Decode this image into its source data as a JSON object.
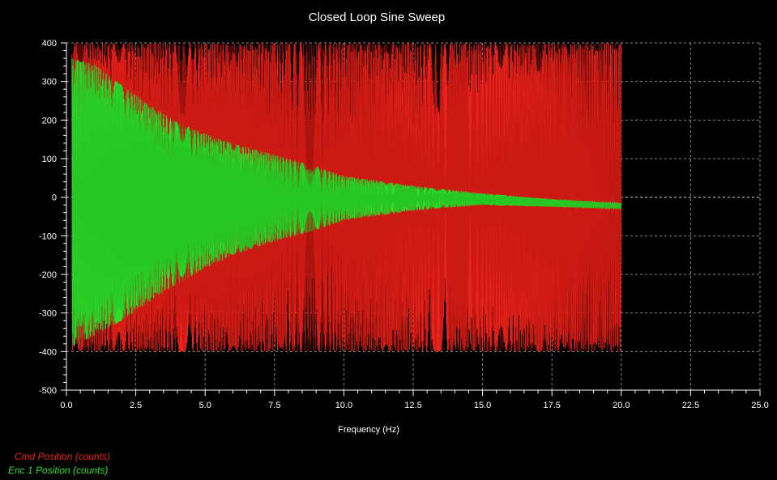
{
  "chart_data": {
    "type": "line",
    "title": "Closed Loop Sine Sweep",
    "xlabel": "Frequency (Hz)",
    "ylabel": "",
    "xlim": [
      0,
      25
    ],
    "ylim": [
      -500,
      400
    ],
    "x_ticks": [
      "0.0",
      "2.5",
      "5.0",
      "7.5",
      "10.0",
      "12.5",
      "15.0",
      "17.5",
      "20.0",
      "22.5",
      "25.0"
    ],
    "y_ticks": [
      "400",
      "300",
      "200",
      "100",
      "0",
      "-100",
      "-200",
      "-300",
      "-400",
      "-500"
    ],
    "grid": true,
    "legend_position": "bottom-left",
    "sweep_range_hz": [
      0.2,
      20.0
    ],
    "series": [
      {
        "name": "Cmd Position (counts)",
        "color": "#e8231c",
        "amplitude": 400,
        "envelope": {
          "x": [
            0.2,
            2.5,
            5.0,
            7.5,
            10.0,
            12.5,
            15.0,
            17.5,
            20.0
          ],
          "max": [
            400,
            400,
            400,
            400,
            400,
            400,
            400,
            400,
            400
          ],
          "min": [
            -400,
            -400,
            -400,
            -400,
            -400,
            -400,
            -400,
            -400,
            -400
          ]
        }
      },
      {
        "name": "Enc 1 Position (counts)",
        "color": "#2fe02c",
        "envelope": {
          "x": [
            0.2,
            1.0,
            2.0,
            3.0,
            4.0,
            5.0,
            6.0,
            7.5,
            9.0,
            10.0,
            12.5,
            15.0,
            17.5,
            20.0
          ],
          "max": [
            360,
            345,
            290,
            240,
            195,
            165,
            140,
            110,
            80,
            55,
            30,
            10,
            -5,
            -15
          ],
          "min": [
            -390,
            -360,
            -320,
            -270,
            -225,
            -185,
            -150,
            -115,
            -85,
            -60,
            -35,
            -20,
            -25,
            -30
          ]
        }
      }
    ]
  },
  "legend": {
    "cmd_label": "Cmd Position (counts)",
    "enc_label": "Enc 1 Position (counts)"
  }
}
